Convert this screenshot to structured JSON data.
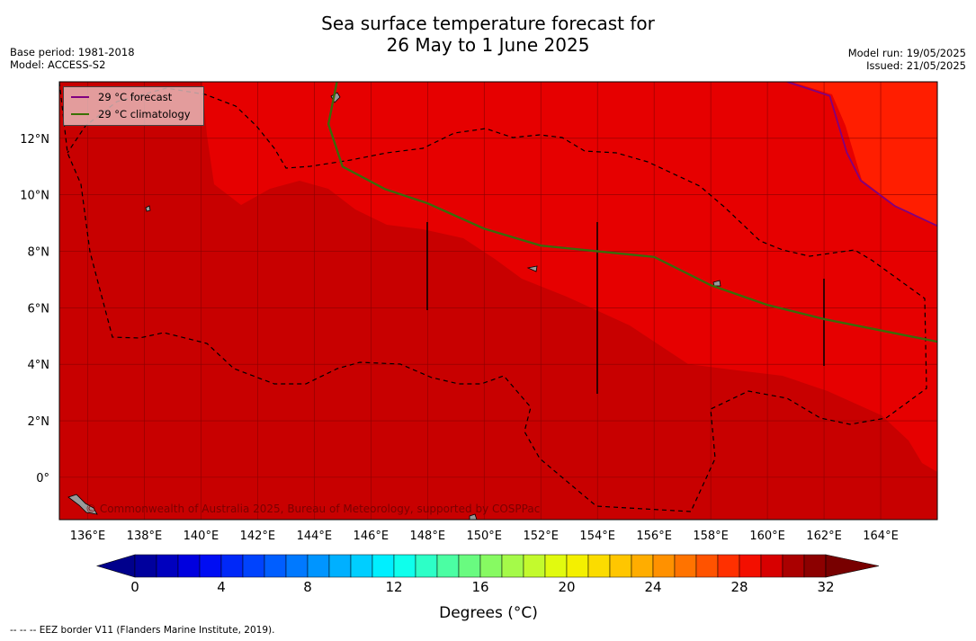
{
  "title_line1": "Sea surface temperature forecast for",
  "title_line2": "26 May to 1 June 2025",
  "base_period": "Base period: 1981-2018",
  "model": "Model: ACCESS-S2",
  "model_run": "Model run: 19/05/2025",
  "issued": "Issued: 21/05/2025",
  "copyright": "© Commonwealth of Australia 2025, Bureau of Meteorology, supported by COSPPac",
  "footer_note": "--  --  -- EEZ border V11 (Flanders Marine Institute, 2019).",
  "colorbar_label": "Degrees (°C)",
  "colors": {
    "warm_region": "#e60000",
    "cool_region": "#c80000",
    "hot_region": "#ff1e00",
    "forecast_line": "#800080",
    "climatology_line": "#3a7000",
    "land": "#999999"
  },
  "chart_data": {
    "type": "heatmap",
    "title": "Sea surface temperature forecast for 26 May to 1 June 2025",
    "xlabel": "",
    "ylabel": "",
    "x_range": [
      135,
      166
    ],
    "y_range": [
      -1.5,
      14
    ],
    "x_ticks": [
      "136°E",
      "138°E",
      "140°E",
      "142°E",
      "144°E",
      "146°E",
      "148°E",
      "150°E",
      "152°E",
      "154°E",
      "156°E",
      "158°E",
      "160°E",
      "162°E",
      "164°E"
    ],
    "y_ticks": [
      "12°N",
      "10°N",
      "8°N",
      "6°N",
      "4°N",
      "2°N",
      "0°"
    ],
    "grid": true,
    "legend": {
      "placement": "top-left",
      "entries": [
        "29 °C  forecast",
        "29 °C  climatology"
      ]
    },
    "colorbar": {
      "orientation": "horizontal",
      "min": 0,
      "max": 32,
      "step": 1,
      "extend": "both",
      "tick_labels": [
        "0",
        "4",
        "8",
        "12",
        "16",
        "20",
        "24",
        "28",
        "32"
      ]
    },
    "regions": [
      {
        "temp_range": "28-29",
        "description": "southwest area"
      },
      {
        "temp_range": "29-30",
        "description": "north and central area"
      },
      {
        "temp_range": "30-31",
        "description": "northeast corner"
      }
    ],
    "series": [
      {
        "name": "29 °C  forecast",
        "points": [
          [
            144.8,
            14
          ],
          [
            144.5,
            12.5
          ],
          [
            145.0,
            11.0
          ],
          [
            146.5,
            10.2
          ],
          [
            148.0,
            9.7
          ],
          [
            150.0,
            8.8
          ],
          [
            152.0,
            8.2
          ],
          [
            154.0,
            8.0
          ],
          [
            156.0,
            7.8
          ],
          [
            158.0,
            6.8
          ],
          [
            160.0,
            6.1
          ],
          [
            162.0,
            5.6
          ],
          [
            164.0,
            5.2
          ],
          [
            166.0,
            4.8
          ]
        ]
      },
      {
        "name": "29 °C  climatology",
        "points": [
          [
            144.8,
            14
          ],
          [
            144.5,
            12.5
          ],
          [
            145.0,
            11.0
          ],
          [
            146.5,
            10.2
          ],
          [
            148.0,
            9.7
          ],
          [
            150.0,
            8.8
          ],
          [
            152.0,
            8.2
          ],
          [
            154.0,
            8.0
          ],
          [
            156.0,
            7.8
          ],
          [
            158.0,
            6.8
          ],
          [
            160.0,
            6.1
          ],
          [
            162.0,
            5.6
          ],
          [
            164.0,
            5.2
          ],
          [
            166.0,
            4.8
          ]
        ]
      },
      {
        "name": "",
        "points": [
          [
            160.7,
            14
          ],
          [
            162.2,
            13.5
          ],
          [
            162.8,
            11.5
          ],
          [
            163.3,
            10.5
          ],
          [
            164.5,
            9.6
          ],
          [
            166.0,
            8.9
          ]
        ]
      }
    ]
  }
}
